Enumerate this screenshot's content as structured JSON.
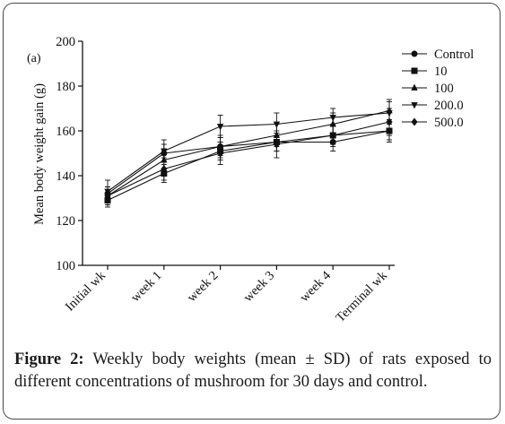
{
  "figure": {
    "caption_label": "Figure 2:",
    "caption_text": " Weekly body weights (mean ± SD) of rats exposed to different concentrations of mushroom for 30 days and control."
  },
  "chart_data": {
    "type": "line",
    "panel_label": "(a)",
    "title": "",
    "xlabel": "",
    "ylabel": "Mean body weight gain (g)",
    "categories": [
      "Initial wk",
      "week 1",
      "week 2",
      "week 3",
      "week 4",
      "Terminal wk"
    ],
    "ylim": [
      100,
      200
    ],
    "yticks": [
      100,
      120,
      140,
      160,
      180,
      200
    ],
    "grid": false,
    "legend_position": "top-right",
    "error_bars": "mean ± SD",
    "series": [
      {
        "name": "Control",
        "marker": "circle",
        "values": [
          132,
          150,
          153,
          155,
          155,
          160
        ],
        "sd": [
          3,
          4,
          4,
          4,
          4,
          5
        ]
      },
      {
        "name": "10",
        "marker": "square",
        "values": [
          129,
          141,
          151,
          155,
          158,
          160
        ],
        "sd": [
          3,
          4,
          4,
          4,
          4,
          4
        ]
      },
      {
        "name": "100",
        "marker": "triangle-up",
        "values": [
          131,
          147,
          153,
          158,
          163,
          169
        ],
        "sd": [
          4,
          5,
          5,
          5,
          5,
          5
        ]
      },
      {
        "name": "200.0",
        "marker": "triangle-down",
        "values": [
          133,
          151,
          162,
          163,
          166,
          168
        ],
        "sd": [
          5,
          5,
          5,
          5,
          4,
          5
        ]
      },
      {
        "name": "500.0",
        "marker": "diamond",
        "values": [
          131,
          143,
          150,
          154,
          158,
          164
        ],
        "sd": [
          4,
          5,
          5,
          6,
          5,
          6
        ]
      }
    ]
  }
}
